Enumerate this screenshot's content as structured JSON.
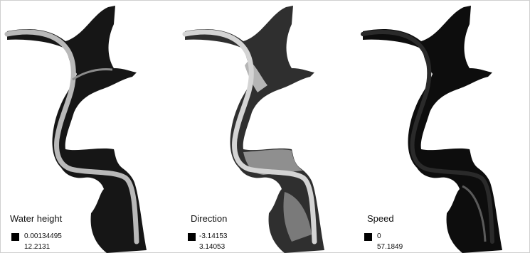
{
  "panels": [
    {
      "title": "Water height",
      "min": "0.00134495",
      "max": "12.2131",
      "style": "dark-channel-light"
    },
    {
      "title": "Direction",
      "min": "-3.14153",
      "max": "3.14053",
      "style": "mixed-gray"
    },
    {
      "title": "Speed",
      "min": "0",
      "max": "57.1849",
      "style": "dark-channel-light"
    }
  ],
  "colors": {
    "background": "#ffffff",
    "water_dark": "#1a1a1a",
    "channel_light": "#b8b8b8",
    "swatch": "#000000"
  }
}
